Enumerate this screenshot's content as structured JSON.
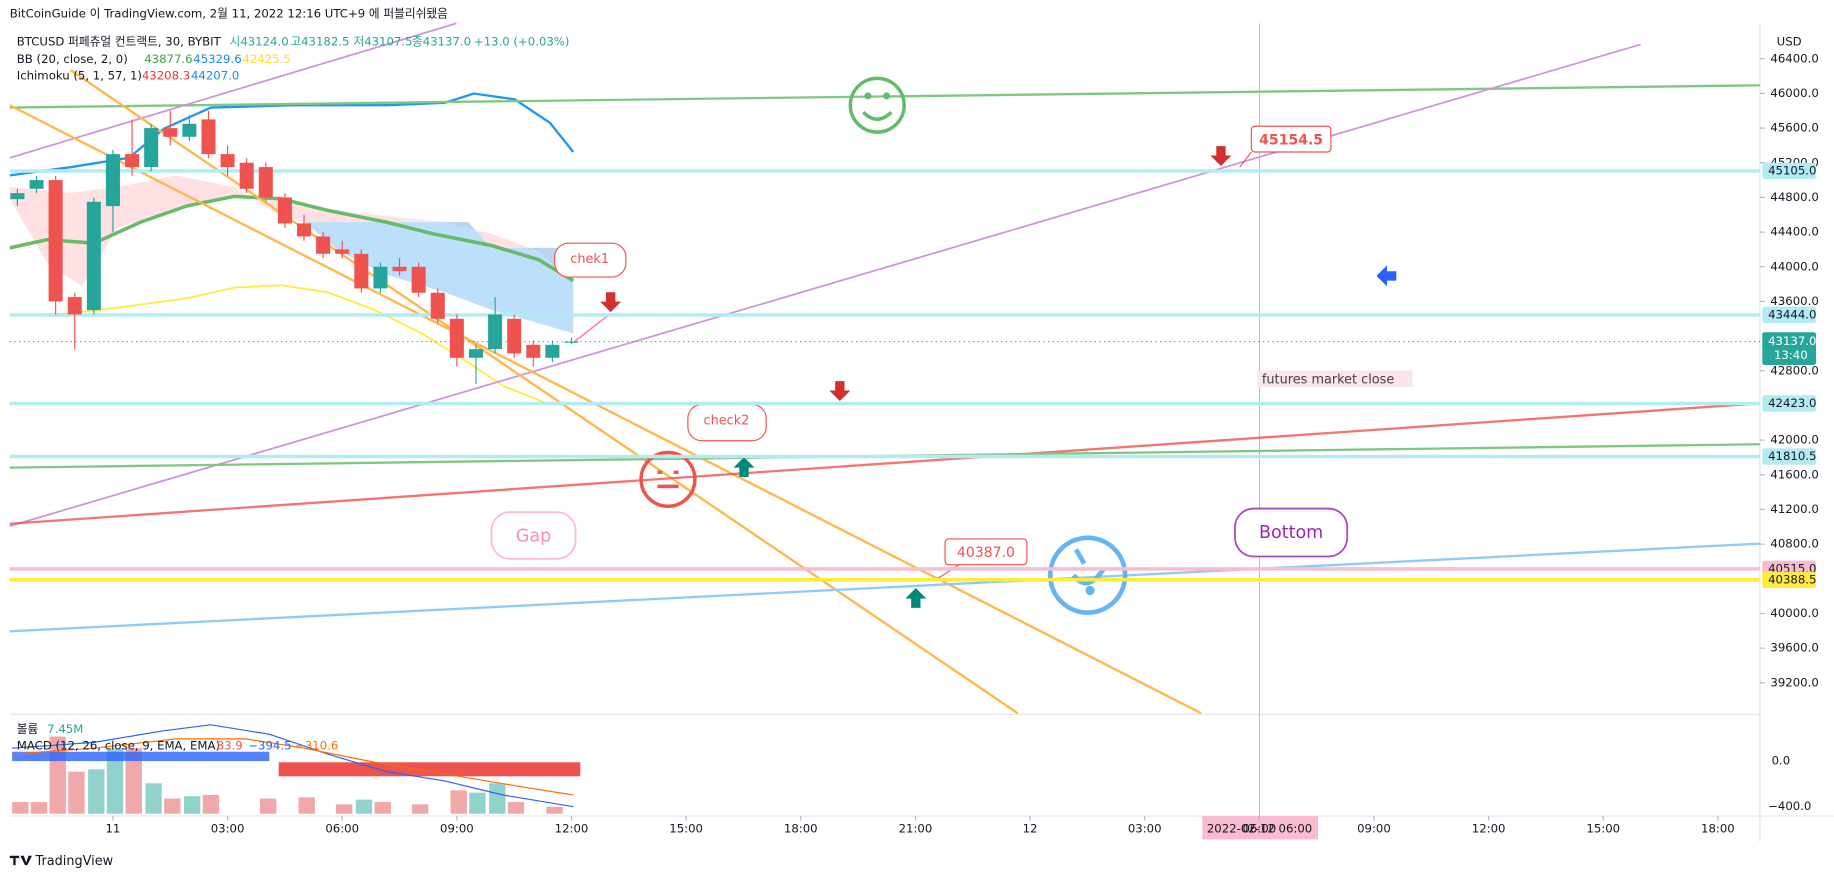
{
  "chart_data": {
    "type": "candlestick",
    "header": "BitCoinGuide 이 TradingView.com, 2월 11, 2022 12:16 UTC+9 에 퍼블리쉬됐음",
    "legend": {
      "symbol": "BTCUSD 퍼페츄얼 컨트랙트, 30, BYBIT",
      "open": "시43124.0",
      "high": "고43182.5",
      "low": "저43107.5",
      "close": "종43137.0",
      "change": "+13.0 (+0.03%)",
      "bb": "BB (20, close, 2, 0)",
      "bb_values": [
        "43877.6",
        "45329.6",
        "42425.5"
      ],
      "ichimoku": "Ichimoku (5, 1, 57, 1)",
      "ichimoku_values": [
        "43208.3",
        "44207.0"
      ]
    },
    "currency": "USD",
    "x": [
      -2.5,
      -2,
      -1.5,
      -1,
      -0.5,
      0,
      0.5,
      1,
      1.5,
      2,
      2.5,
      3,
      3.5,
      4,
      4.5,
      5,
      5.5,
      6,
      6.5,
      7,
      7.5,
      8,
      8.5,
      9,
      9.5,
      10,
      10.5,
      11,
      11.5,
      12
    ],
    "open": [
      44780,
      44900,
      45000,
      43650,
      43500,
      44700,
      45300,
      45150,
      45600,
      45500,
      45700,
      45300,
      45200,
      45150,
      44800,
      44500,
      44350,
      44200,
      44150,
      43750,
      44000,
      44000,
      43700,
      43400,
      42950,
      43050,
      43400,
      43100,
      42950,
      43124
    ],
    "high": [
      44900,
      45050,
      45050,
      43700,
      44800,
      45350,
      45700,
      45650,
      45800,
      45750,
      45800,
      45400,
      45250,
      45200,
      44850,
      44600,
      44400,
      44300,
      44200,
      44050,
      44100,
      44050,
      43750,
      43450,
      43100,
      43650,
      43450,
      43150,
      43150,
      43182.5
    ],
    "low": [
      44700,
      44850,
      43450,
      43050,
      43450,
      44400,
      45050,
      45100,
      45400,
      45450,
      45250,
      45050,
      44850,
      44750,
      44450,
      44300,
      44100,
      44100,
      43700,
      43700,
      43900,
      43650,
      43350,
      42850,
      42650,
      43000,
      42950,
      42850,
      42900,
      43107.5
    ],
    "close": [
      44850,
      45000,
      43600,
      43450,
      44750,
      45300,
      45150,
      45600,
      45500,
      45650,
      45300,
      45150,
      44900,
      44800,
      44500,
      44350,
      44150,
      44150,
      43750,
      44000,
      43950,
      43700,
      43400,
      42950,
      43050,
      43450,
      43000,
      42950,
      43100,
      43137
    ],
    "up_color": "#26a69a",
    "down_color": "#ef5350",
    "xlim": [
      -2.7,
      43.1
    ],
    "xticks": [
      {
        "value": 0,
        "label": "11"
      },
      {
        "value": 3,
        "label": "03:00"
      },
      {
        "value": 6,
        "label": "06:00"
      },
      {
        "value": 9,
        "label": "09:00"
      },
      {
        "value": 12,
        "label": "12:00"
      },
      {
        "value": 15,
        "label": "15:00"
      },
      {
        "value": 18,
        "label": "18:00"
      },
      {
        "value": 21,
        "label": "21:00"
      },
      {
        "value": 24,
        "label": "12"
      },
      {
        "value": 27,
        "label": "03:00"
      },
      {
        "value": 30,
        "label": "06:00"
      },
      {
        "value": 33,
        "label": "09:00"
      },
      {
        "value": 36,
        "label": "12:00"
      },
      {
        "value": 39,
        "label": "15:00"
      },
      {
        "value": 42,
        "label": "18:00"
      }
    ],
    "ylim": [
      38850,
      46970
    ],
    "yticks": [
      {
        "value": 46400,
        "label": "46400.0"
      },
      {
        "value": 46000,
        "label": "46000.0"
      },
      {
        "value": 45600,
        "label": "45600.0"
      },
      {
        "value": 45200,
        "label": "45200.0"
      },
      {
        "value": 44800,
        "label": "44800.0"
      },
      {
        "value": 44400,
        "label": "44400.0"
      },
      {
        "value": 44000,
        "label": "44000.0"
      },
      {
        "value": 43600,
        "label": "43600.0"
      },
      {
        "value": 42800,
        "label": "42800.0"
      },
      {
        "value": 42000,
        "label": "42000.0"
      },
      {
        "value": 41600,
        "label": "41600.0"
      },
      {
        "value": 41200,
        "label": "41200.0"
      },
      {
        "value": 40800,
        "label": "40800.0"
      },
      {
        "value": 40000,
        "label": "40000.0"
      },
      {
        "value": 39600,
        "label": "39600.0"
      },
      {
        "value": 39200,
        "label": "39200.0"
      }
    ],
    "levels": [
      {
        "value": 45105,
        "label": "45105.0",
        "color": "#b2ebf2"
      },
      {
        "value": 43444,
        "label": "43444.0",
        "color": "#b2ebf2"
      },
      {
        "value": 42423,
        "label": "42423.0",
        "color": "#b2ebf2"
      },
      {
        "value": 41810.5,
        "label": "41810.5",
        "color": "#b2ebf2"
      },
      {
        "value": 40515,
        "label": "40515.0",
        "color": "#f8bbd0"
      },
      {
        "value": 40388.5,
        "label": "40388.5",
        "color": "#ffeb3b"
      }
    ],
    "current": {
      "value": 43137,
      "label": "43137.0",
      "countdown": "13:40",
      "color": "#26a69a"
    },
    "annotations": {
      "chek1": "chek1",
      "check2": "check2",
      "gap": "Gap",
      "bottom": "Bottom",
      "top_price": "45154.5",
      "low_price": "40387.0",
      "futures": "futures market close"
    },
    "cursor_date": "2022-02-12  06:00",
    "pane": {
      "volume": "볼륨",
      "volume_value": "7.45M",
      "macd": "MACD (12, 26, close, 9, EMA, EMA)",
      "macd_values": [
        "83.9",
        "−394.5",
        "−310.6"
      ],
      "ticks": [
        "0.0",
        "−400.0"
      ]
    },
    "footer": "TradingView"
  }
}
